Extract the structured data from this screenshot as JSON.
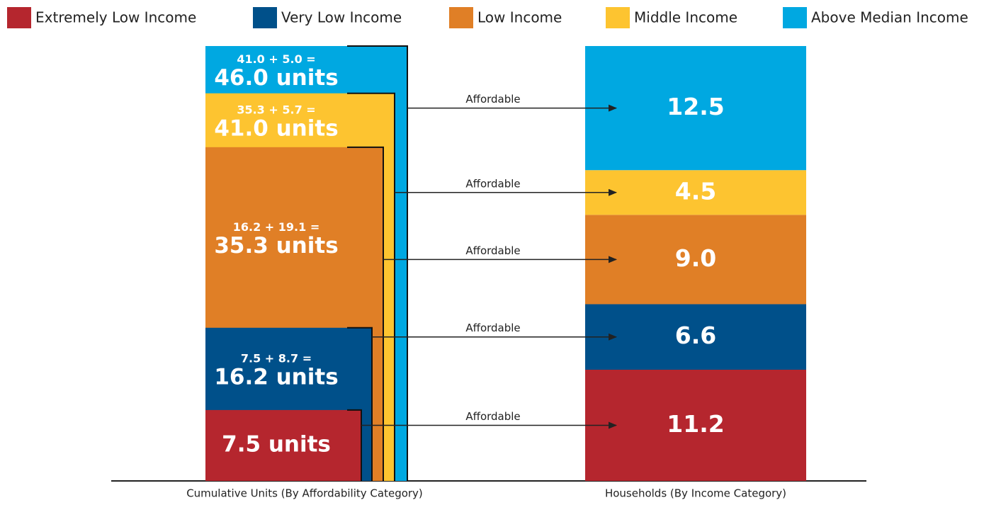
{
  "legend": [
    {
      "name": "Extremely Low Income",
      "color": "#b5262e"
    },
    {
      "name": "Very Low Income",
      "color": "#00508a"
    },
    {
      "name": "Low Income",
      "color": "#e07f26"
    },
    {
      "name": "Middle Income",
      "color": "#fdc430"
    },
    {
      "name": "Above Median Income",
      "color": "#00a8e1"
    }
  ],
  "cumulative_units": {
    "label": "Cumulative Units (By Affordability Category)",
    "segments": [
      {
        "total": 7.5,
        "total_label": "7.5 units"
      },
      {
        "equation": "7.5 + 8.7 =",
        "total": 16.2,
        "total_label": "16.2 units"
      },
      {
        "equation": "16.2 + 19.1 =",
        "total": 35.3,
        "total_label": "35.3 units"
      },
      {
        "equation": "35.3 + 5.7 =",
        "total": 41.0,
        "total_label": "41.0 units"
      },
      {
        "equation": "41.0 + 5.0 =",
        "total": 46.0,
        "total_label": "46.0 units"
      }
    ]
  },
  "arrow_label": "Affordable",
  "households": {
    "label": "Households (By Income Category)",
    "values": [
      11.2,
      6.6,
      9.0,
      4.5,
      12.5
    ],
    "value_labels": [
      "11.2",
      "6.6",
      "9.0",
      "4.5",
      "12.5"
    ]
  }
}
